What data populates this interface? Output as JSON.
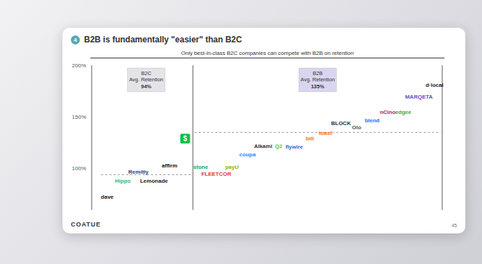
{
  "badge": "4",
  "footer": "COATUE",
  "page": "45",
  "chart_data": {
    "type": "scatter",
    "title": "B2B is fundamentally \"easier\" than B2C",
    "subtitle": "Only best-in-class B2C companies can compete with B2B on retention",
    "ylim": [
      60,
      200
    ],
    "yticks": [
      {
        "value": 100,
        "label": "100%"
      },
      {
        "value": 150,
        "label": "150%"
      },
      {
        "value": 200,
        "label": "200%"
      }
    ],
    "grid": false,
    "tick_labels": "y",
    "series": [
      {
        "name": "B2C",
        "avg_label": "Avg. Retention",
        "avg": 94,
        "avg_value_label": "94%",
        "color": "#e4e4e8",
        "categories": [
          "dave",
          "Hippo",
          "Remitly",
          "Lemonade",
          "affirm",
          "$"
        ],
        "values": [
          73,
          88,
          97,
          88,
          103,
          129
        ],
        "colors": [
          "#111111",
          "#3cb371",
          "#1f3c88",
          "#222222",
          "#111111",
          "#00c244"
        ]
      },
      {
        "name": "B2B",
        "avg_label": "Avg. Retention",
        "avg": 135,
        "avg_value_label": "135%",
        "color": "#d9d5f0",
        "categories": [
          "stone",
          "FLEETCOR",
          "payU",
          "coupa",
          "Alkami",
          "Q2",
          "flywire",
          "bill",
          "toast",
          "BLOCK",
          "Olo",
          "blend",
          "nCino",
          "edgee",
          "MARQETA",
          "d·local"
        ],
        "values": [
          102,
          95,
          102,
          114,
          122,
          122,
          121,
          129,
          135,
          144,
          140,
          147,
          155,
          155,
          170,
          181
        ],
        "colors": [
          "#00a868",
          "#e03c31",
          "#8fb300",
          "#1a8cff",
          "#333333",
          "#6cbe45",
          "#2c6ecb",
          "#ff6a13",
          "#ff6a00",
          "#333333",
          "#555555",
          "#2d68f0",
          "#a31f60",
          "#48a23f",
          "#5a4fcf",
          "#1a1a1a"
        ]
      }
    ]
  }
}
